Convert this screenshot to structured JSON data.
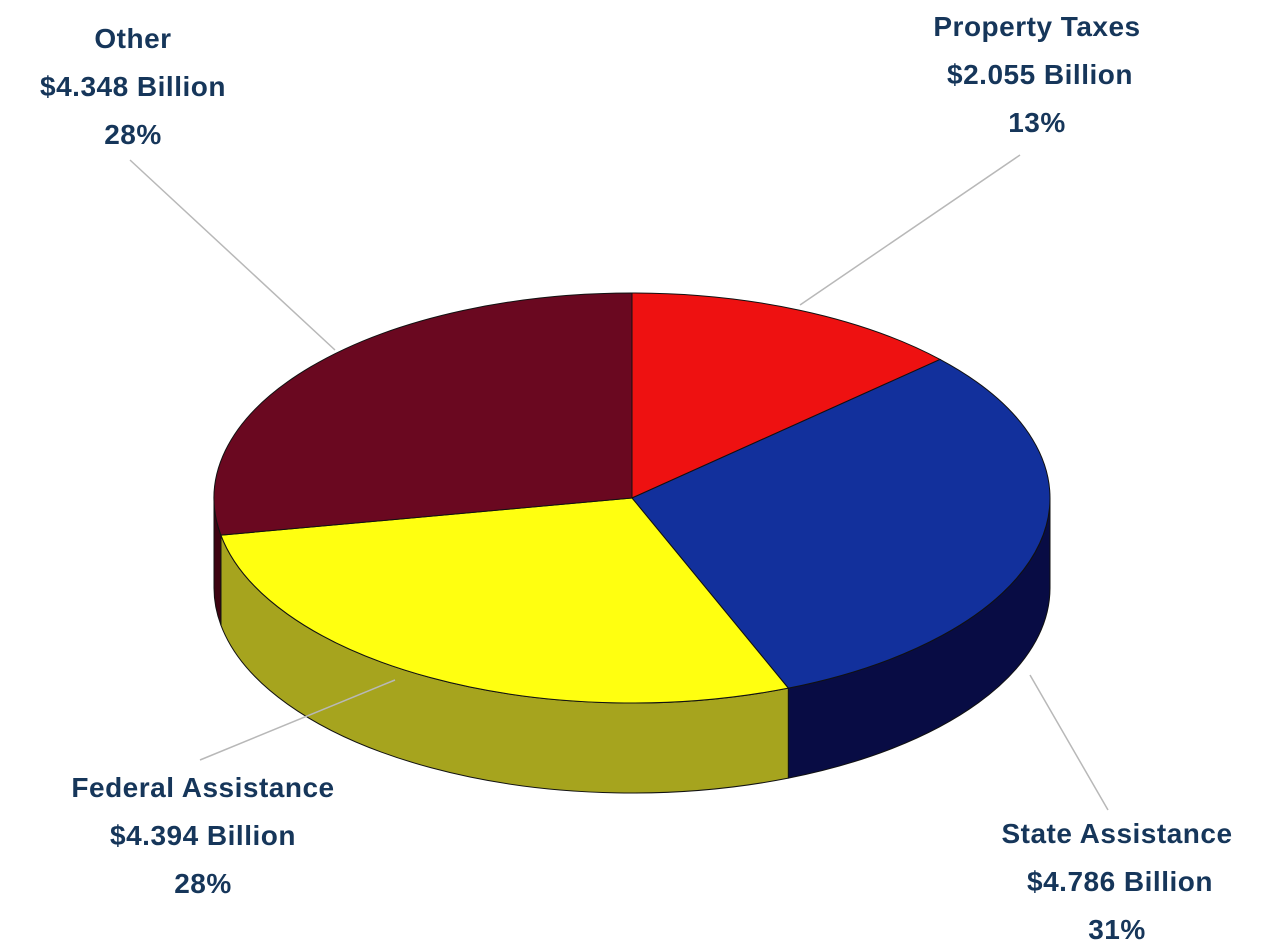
{
  "chart_data": {
    "type": "pie",
    "style": "3d",
    "slices": [
      {
        "name": "Property Taxes",
        "amount": "$2.055 Billion",
        "value": 2.055,
        "percent": "13%",
        "color": "#ee1111",
        "side_color": "#9a0a0a"
      },
      {
        "name": "State Assistance",
        "amount": "$4.786 Billion",
        "value": 4.786,
        "percent": "31%",
        "color": "#12309c",
        "side_color": "#080c44"
      },
      {
        "name": "Federal Assistance",
        "amount": "$4.394 Billion",
        "value": 4.394,
        "percent": "28%",
        "color": "#ffff10",
        "side_color": "#a6a41e"
      },
      {
        "name": "Other",
        "amount": "$4.348 Billion",
        "value": 4.348,
        "percent": "28%",
        "color": "#6a0820",
        "side_color": "#3e0412"
      }
    ]
  }
}
